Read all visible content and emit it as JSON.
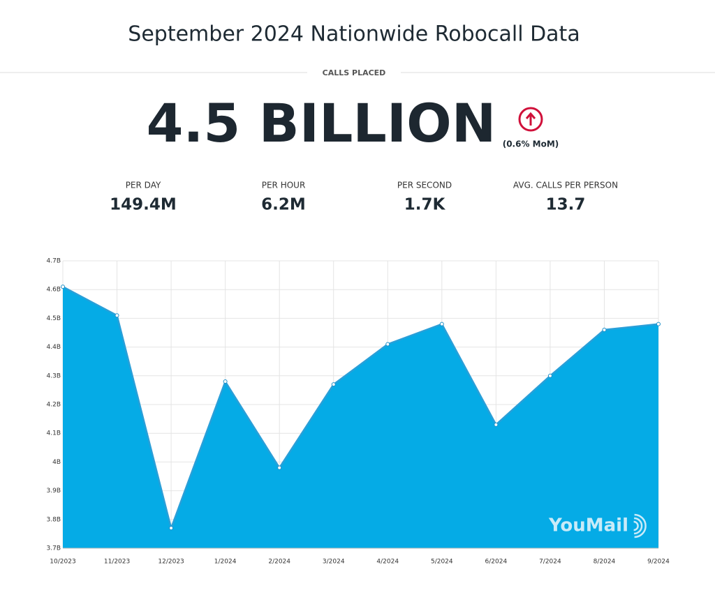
{
  "header": {
    "title": "September 2024 Nationwide Robocall Data",
    "label": "CALLS PLACED",
    "total": "4.5 BILLION",
    "change": "(0.6% MoM)"
  },
  "stats": [
    {
      "label": "PER DAY",
      "value": "149.4M"
    },
    {
      "label": "PER HOUR",
      "value": "6.2M"
    },
    {
      "label": "PER SECOND",
      "value": "1.7K"
    },
    {
      "label": "AVG. CALLS PER PERSON",
      "value": "13.7"
    }
  ],
  "chart_data": {
    "type": "area",
    "categories": [
      "10/2023",
      "11/2023",
      "12/2023",
      "1/2024",
      "2/2024",
      "3/2024",
      "4/2024",
      "5/2024",
      "6/2024",
      "7/2024",
      "8/2024",
      "9/2024"
    ],
    "values": [
      4.61,
      4.51,
      3.77,
      4.28,
      3.98,
      4.27,
      4.41,
      4.48,
      4.13,
      4.3,
      4.46,
      4.48
    ],
    "color": "#00a9e6",
    "ylim": [
      3.7,
      4.7
    ],
    "yticks": [
      {
        "value": 3.7,
        "label": "3.7B"
      },
      {
        "value": 3.8,
        "label": "3.8B"
      },
      {
        "value": 3.9,
        "label": "3.9B"
      },
      {
        "value": 4,
        "label": "4B"
      },
      {
        "value": 4.1,
        "label": "4.1B"
      },
      {
        "value": 4.2,
        "label": "4.2B"
      },
      {
        "value": 4.3,
        "label": "4.3B"
      },
      {
        "value": 4.4,
        "label": "4.4B"
      },
      {
        "value": 4.5,
        "label": "4.5B"
      },
      {
        "value": 4.6,
        "label": "4.6B"
      },
      {
        "value": 4.7,
        "label": "4.7B"
      }
    ],
    "grid": true
  },
  "watermark": "YouMail"
}
